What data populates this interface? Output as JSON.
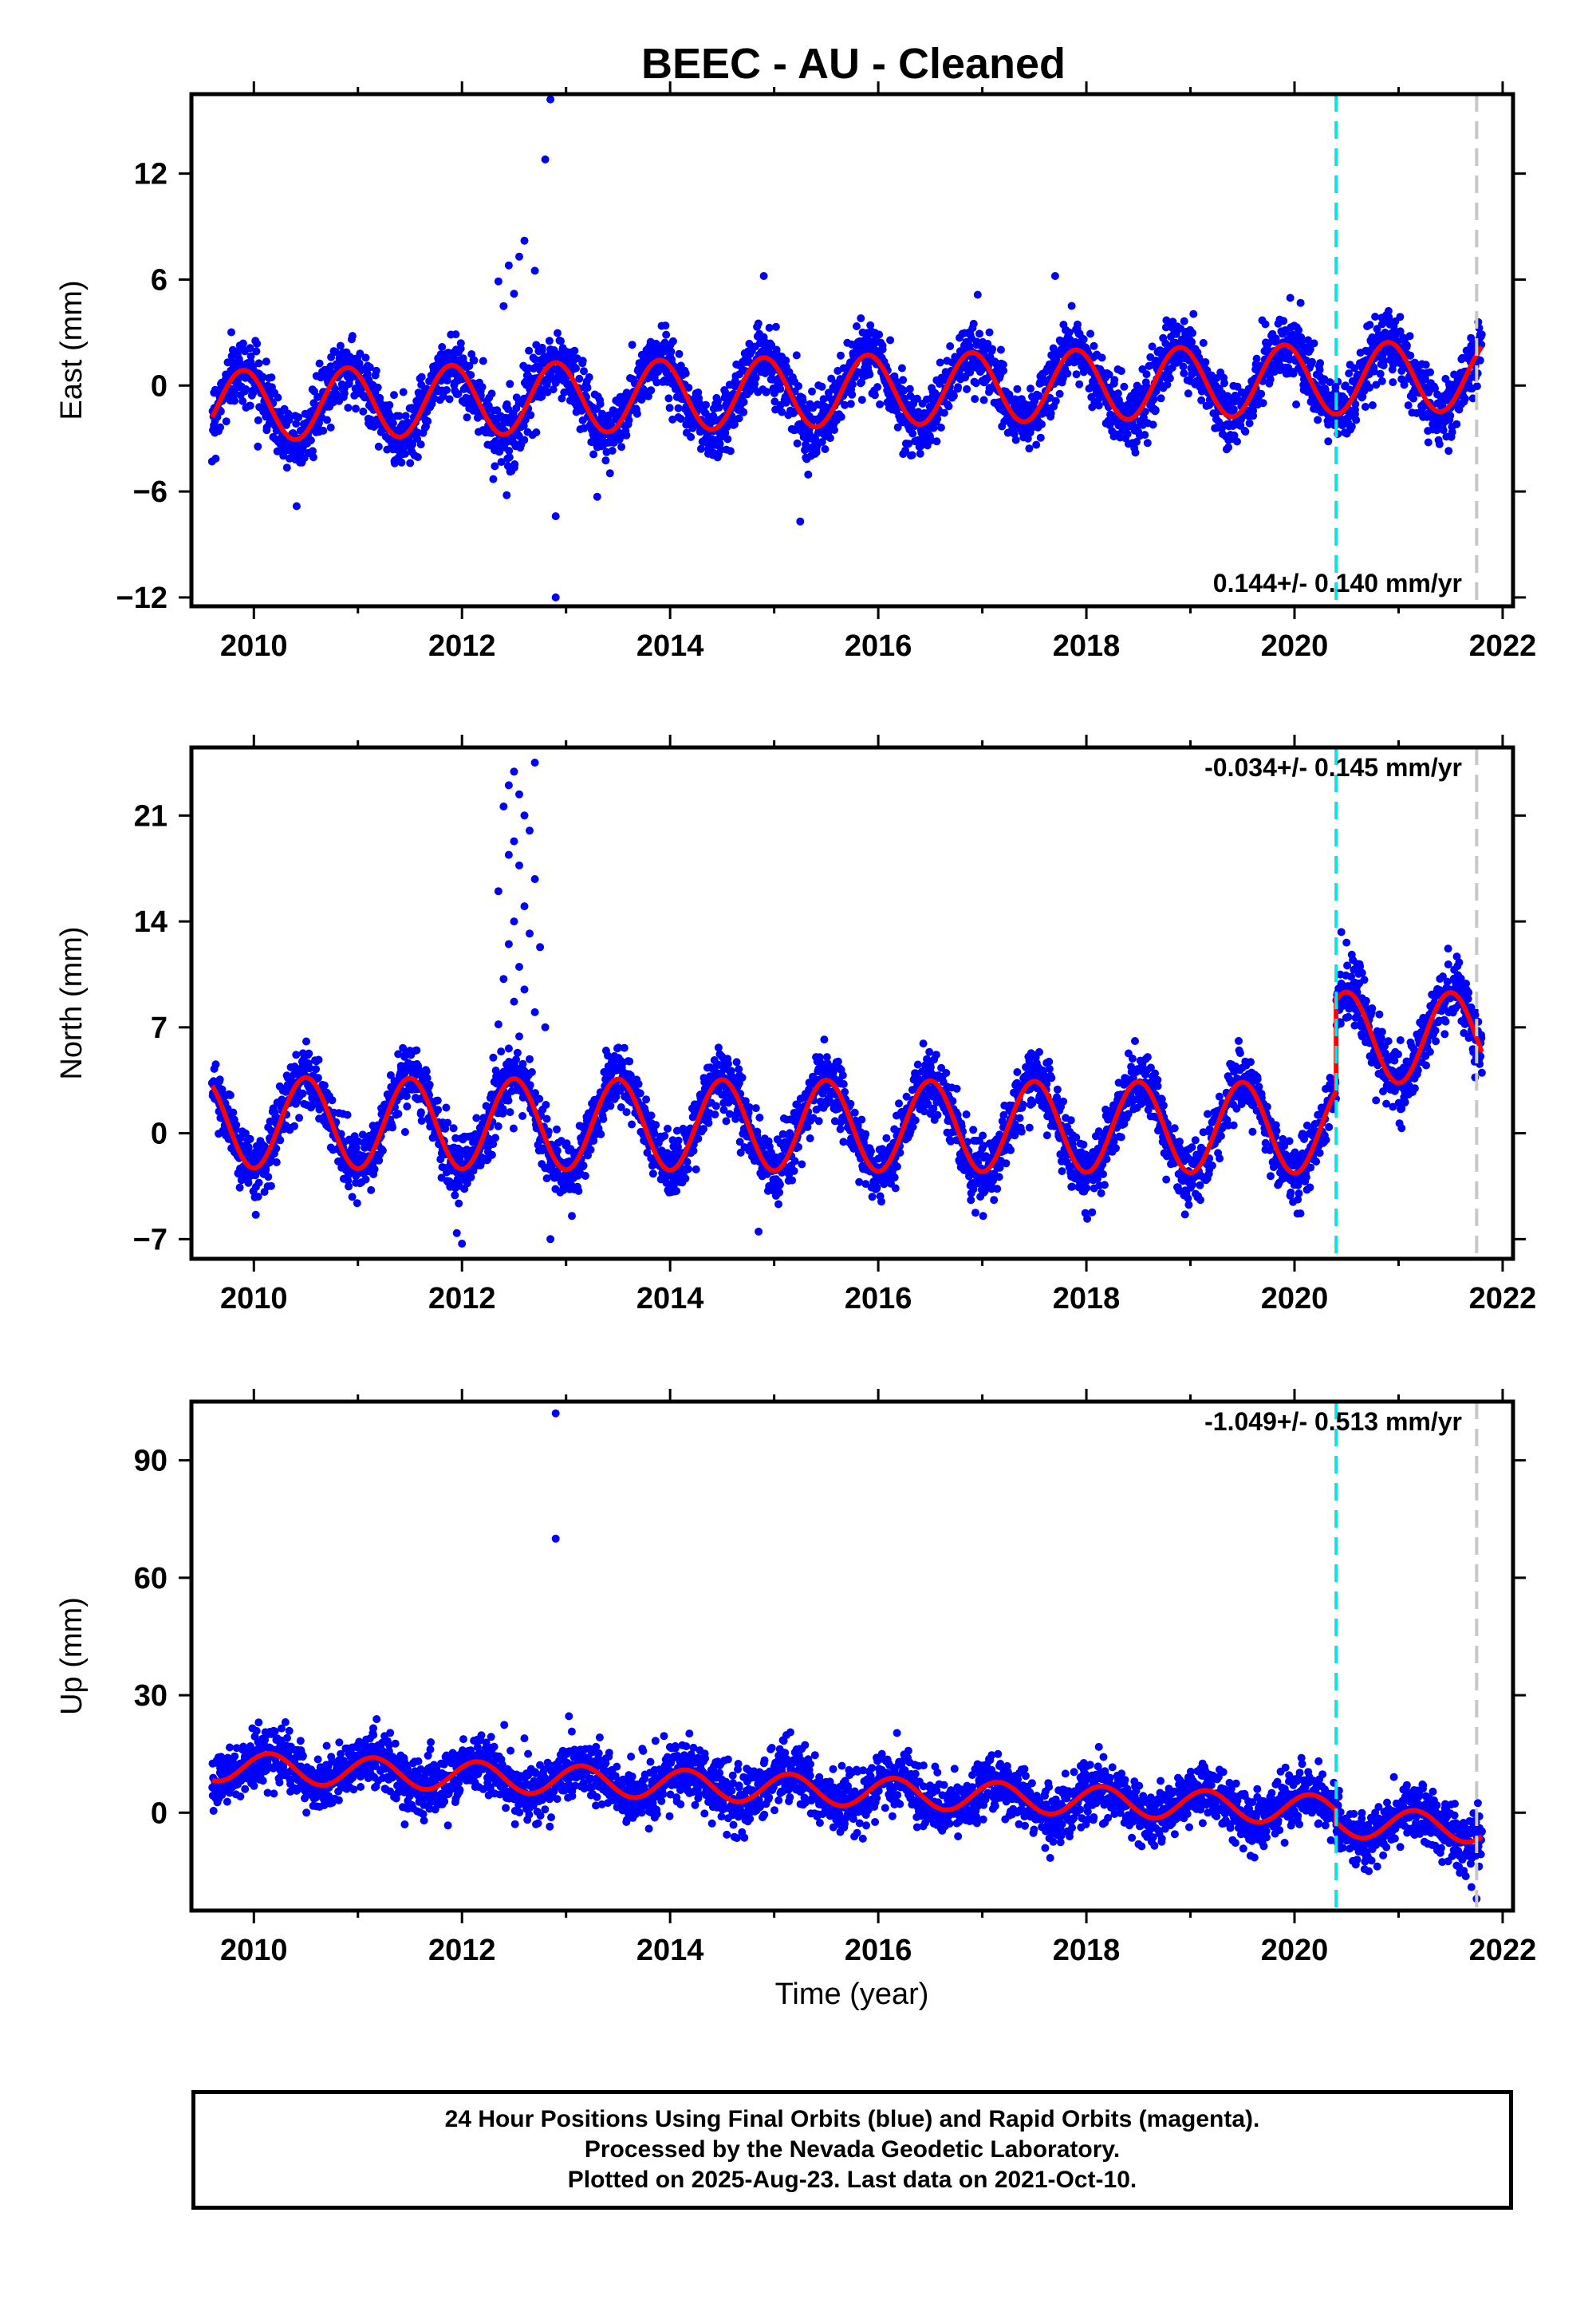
{
  "chart_data": {
    "title": "BEEC  - AU - Cleaned",
    "xlabel": "Time (year)",
    "xlim": [
      2009.4,
      2022.1
    ],
    "x_ticks": [
      2010,
      2012,
      2014,
      2016,
      2018,
      2020,
      2022
    ],
    "x_tick_labels": [
      "2010",
      "2012",
      "2014",
      "2016",
      "2018",
      "2020",
      "2022"
    ],
    "vertical_lines": [
      {
        "x": 2020.4,
        "color": "#00e5e5",
        "style": "dashed"
      },
      {
        "x": 2021.75,
        "color": "#c8c8c8",
        "style": "dashed"
      }
    ],
    "colors": {
      "data": "#0000ff",
      "fit": "#ff0000",
      "axis": "#000000"
    },
    "panels": [
      {
        "type": "scatter",
        "ylabel": "East (mm)",
        "ylim": [
          -12.5,
          16.5
        ],
        "y_ticks": [
          -12,
          -6,
          0,
          6,
          12
        ],
        "y_tick_labels": [
          "−12",
          "−6",
          "0",
          "6",
          "12"
        ],
        "rate_label": "0.144+/- 0.140 mm/yr",
        "rate_position": "bottom-right",
        "model": {
          "start": 2009.6,
          "end": 2021.8,
          "trend_per_yr": 0.144,
          "amp1": 2.0,
          "phase1_peak": 0.9,
          "amp2": 0.0,
          "offset_at": 2020.4,
          "offset_value": 0.0,
          "base": -0.3
        },
        "noise_std": 0.9,
        "n_points": 3600,
        "outliers": [
          {
            "x": 2012.85,
            "y": 16.2
          },
          {
            "x": 2012.8,
            "y": 12.8
          },
          {
            "x": 2012.9,
            "y": -12.0
          },
          {
            "x": 2012.9,
            "y": -7.4
          },
          {
            "x": 2015.25,
            "y": -7.7
          },
          {
            "x": 2014.9,
            "y": 6.2
          },
          {
            "x": 2012.6,
            "y": 8.2
          },
          {
            "x": 2012.55,
            "y": 7.3
          },
          {
            "x": 2012.45,
            "y": 6.8
          },
          {
            "x": 2012.7,
            "y": 6.5
          },
          {
            "x": 2012.35,
            "y": 5.9
          },
          {
            "x": 2012.5,
            "y": 5.2
          },
          {
            "x": 2012.4,
            "y": 4.5
          },
          {
            "x": 2012.3,
            "y": -5.3
          },
          {
            "x": 2013.3,
            "y": -6.3
          },
          {
            "x": 2017.7,
            "y": 6.2
          }
        ]
      },
      {
        "type": "scatter",
        "ylabel": "North (mm)",
        "ylim": [
          -8.3,
          25.5
        ],
        "y_ticks": [
          -7,
          0,
          7,
          14,
          21
        ],
        "y_tick_labels": [
          "−7",
          "0",
          "7",
          "14",
          "21"
        ],
        "rate_label": "-0.034+/- 0.145 mm/yr",
        "rate_position": "top-right",
        "model": {
          "start": 2009.6,
          "end": 2021.8,
          "trend_per_yr": -0.034,
          "amp1": 3.0,
          "phase1_peak": 0.5,
          "amp2": 0.0,
          "offset_at": 2020.4,
          "offset_value": 6.0,
          "base": 0.5
        },
        "noise_std": 1.0,
        "n_points": 3600,
        "outliers": [
          {
            "x": 2012.5,
            "y": 23.9
          },
          {
            "x": 2012.45,
            "y": 23.0
          },
          {
            "x": 2012.55,
            "y": 22.4
          },
          {
            "x": 2012.4,
            "y": 21.6
          },
          {
            "x": 2012.6,
            "y": 21.0
          },
          {
            "x": 2012.65,
            "y": 20.0
          },
          {
            "x": 2012.5,
            "y": 19.3
          },
          {
            "x": 2012.45,
            "y": 18.4
          },
          {
            "x": 2012.55,
            "y": 17.7
          },
          {
            "x": 2012.7,
            "y": 16.8
          },
          {
            "x": 2012.35,
            "y": 16.0
          },
          {
            "x": 2012.6,
            "y": 15.0
          },
          {
            "x": 2012.5,
            "y": 14.0
          },
          {
            "x": 2012.65,
            "y": 13.2
          },
          {
            "x": 2012.45,
            "y": 12.5
          },
          {
            "x": 2012.75,
            "y": 12.3
          },
          {
            "x": 2012.55,
            "y": 11.0
          },
          {
            "x": 2012.4,
            "y": 10.2
          },
          {
            "x": 2012.6,
            "y": 9.5
          },
          {
            "x": 2012.5,
            "y": 8.7
          },
          {
            "x": 2012.7,
            "y": 8.0
          },
          {
            "x": 2012.35,
            "y": 7.2
          },
          {
            "x": 2012.55,
            "y": 6.4
          },
          {
            "x": 2012.45,
            "y": 5.6
          },
          {
            "x": 2012.65,
            "y": 4.9
          },
          {
            "x": 2012.8,
            "y": 7.0
          },
          {
            "x": 2012.3,
            "y": 5.0
          },
          {
            "x": 2012.7,
            "y": 24.5
          },
          {
            "x": 2012.0,
            "y": -7.3
          },
          {
            "x": 2011.95,
            "y": -6.6
          },
          {
            "x": 2012.85,
            "y": -7.0
          },
          {
            "x": 2014.85,
            "y": -6.5
          },
          {
            "x": 2020.45,
            "y": 13.3
          },
          {
            "x": 2020.5,
            "y": 12.6
          },
          {
            "x": 2020.55,
            "y": 11.8
          },
          {
            "x": 2020.6,
            "y": 11.2
          },
          {
            "x": 2020.65,
            "y": 10.6
          }
        ]
      },
      {
        "type": "scatter",
        "ylabel": "Up (mm)",
        "ylim": [
          -25,
          105
        ],
        "y_ticks": [
          0,
          30,
          60,
          90
        ],
        "y_tick_labels": [
          "0",
          "30",
          "60",
          "90"
        ],
        "rate_label": "-1.049+/- 0.513 mm/yr",
        "rate_position": "top-right",
        "model": {
          "start": 2009.6,
          "end": 2021.8,
          "trend_per_yr": -1.049,
          "amp1": 3.8,
          "phase1_peak": 0.15,
          "amp2": 0.0,
          "offset_at": 2020.4,
          "offset_value": -3.0,
          "base": 5.5
        },
        "noise_std": 3.6,
        "n_points": 3600,
        "outliers": [
          {
            "x": 2012.9,
            "y": 102.0
          },
          {
            "x": 2012.9,
            "y": 70.0
          },
          {
            "x": 2012.6,
            "y": 19.0
          },
          {
            "x": 2011.7,
            "y": 18.0
          },
          {
            "x": 2014.05,
            "y": 17.0
          },
          {
            "x": 2021.75,
            "y": -22.0
          },
          {
            "x": 2021.7,
            "y": -19.0
          }
        ]
      }
    ]
  },
  "caption": {
    "line1": "24 Hour Positions Using Final Orbits (blue) and Rapid Orbits (magenta).",
    "line2": "Processed by the Nevada Geodetic Laboratory.",
    "line3": "Plotted on 2025-Aug-23. Last data on 2021-Oct-10."
  }
}
